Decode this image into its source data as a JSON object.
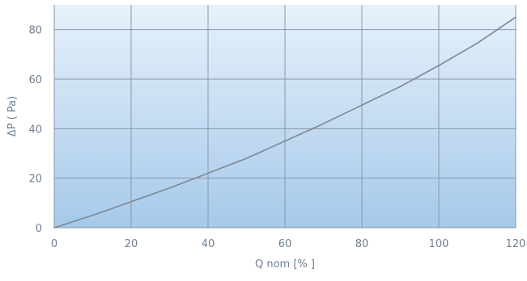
{
  "chart_data": {
    "type": "line",
    "xlabel": "Q nom [% ]",
    "ylabel": "ΔP ( Pa)",
    "xlim": [
      0,
      120
    ],
    "ylim": [
      0,
      90
    ],
    "x_ticks": [
      "0",
      "20",
      "40",
      "60",
      "80",
      "100",
      "120"
    ],
    "y_ticks": [
      "0",
      "20",
      "40",
      "60",
      "80"
    ],
    "grid": true,
    "series": [
      {
        "x": [
          0,
          10,
          20,
          30,
          40,
          50,
          60,
          70,
          80,
          90,
          100,
          110,
          120
        ],
        "values": [
          0,
          5,
          10.5,
          16,
          22,
          28,
          35,
          42,
          49.5,
          57,
          65.5,
          74.5,
          85
        ]
      }
    ],
    "colors": {
      "background_top": "#e6f1fb",
      "background_bottom": "#a6c9ea",
      "grid": "#8a97a6",
      "line": "#7d8791",
      "text": "#6f7f90"
    }
  }
}
